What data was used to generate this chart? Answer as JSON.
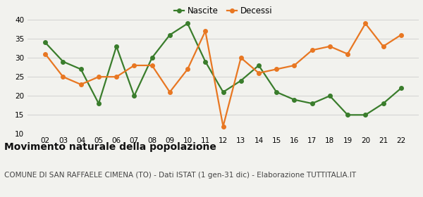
{
  "years": [
    "02",
    "03",
    "04",
    "05",
    "06",
    "07",
    "08",
    "09",
    "10",
    "11",
    "12",
    "13",
    "14",
    "15",
    "16",
    "17",
    "18",
    "19",
    "20",
    "21",
    "22"
  ],
  "nascite": [
    34,
    29,
    27,
    18,
    33,
    20,
    30,
    36,
    39,
    29,
    21,
    24,
    28,
    21,
    19,
    18,
    20,
    15,
    15,
    18,
    22
  ],
  "decessi": [
    31,
    25,
    23,
    25,
    25,
    28,
    28,
    21,
    27,
    37,
    12,
    30,
    26,
    27,
    28,
    32,
    33,
    31,
    39,
    33,
    36
  ],
  "nascite_color": "#3a7d2c",
  "decessi_color": "#e87722",
  "background_color": "#f2f2ee",
  "ylim": [
    10,
    40
  ],
  "yticks": [
    10,
    15,
    20,
    25,
    30,
    35,
    40
  ],
  "title": "Movimento naturale della popolazione",
  "subtitle": "COMUNE DI SAN RAFFAELE CIMENA (TO) - Dati ISTAT (1 gen-31 dic) - Elaborazione TUTTITALIA.IT",
  "legend_nascite": "Nascite",
  "legend_decessi": "Decessi",
  "title_fontsize": 10,
  "subtitle_fontsize": 7.5,
  "marker_size": 4,
  "linewidth": 1.6
}
